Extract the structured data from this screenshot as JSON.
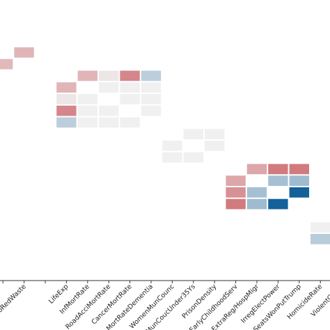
{
  "chart_data": {
    "type": "heatmap",
    "title": "",
    "xlabel": "",
    "ylabel": "",
    "color_scale": {
      "min": -1,
      "max": 1,
      "negative": "#0b5a96",
      "neutral": "#f0f0f0",
      "positive": "#c0393f"
    },
    "x_categories": [
      "",
      "gCoRedWaste",
      "",
      "LifeExp",
      "InfMortRate",
      "RoadAcciMortRate",
      "CancerMortRate",
      "MortRateDementia",
      "WomenMunCounc",
      "MunCoucUnder35Ys",
      "PrisonDensity",
      "EarlyChildhoodServ",
      "ExtraReg/HospMigr",
      "IrregElectPower",
      "SeatsWonPutTrump",
      "HomicideRate",
      "ViolentCrime",
      ""
    ],
    "cells": [
      {
        "x": 0,
        "y": 1,
        "value": 0.2
      },
      {
        "x": 1,
        "y": 0,
        "value": 0.22
      },
      {
        "x": 3,
        "y": 3,
        "value": 0.22
      },
      {
        "x": 3,
        "y": 4,
        "value": 0.02
      },
      {
        "x": 3,
        "y": 5,
        "value": 0.48
      },
      {
        "x": 3,
        "y": 6,
        "value": -0.14
      },
      {
        "x": 4,
        "y": 2,
        "value": 0.22
      },
      {
        "x": 4,
        "y": 4,
        "value": 0.0
      },
      {
        "x": 4,
        "y": 5,
        "value": 0.0
      },
      {
        "x": 4,
        "y": 6,
        "value": 0.0
      },
      {
        "x": 5,
        "y": 2,
        "value": 0.02
      },
      {
        "x": 5,
        "y": 3,
        "value": 0.0
      },
      {
        "x": 5,
        "y": 5,
        "value": 0.0
      },
      {
        "x": 5,
        "y": 6,
        "value": 0.0
      },
      {
        "x": 6,
        "y": 2,
        "value": 0.48
      },
      {
        "x": 6,
        "y": 3,
        "value": 0.0
      },
      {
        "x": 6,
        "y": 4,
        "value": 0.0
      },
      {
        "x": 6,
        "y": 6,
        "value": 0.0
      },
      {
        "x": 7,
        "y": 2,
        "value": -0.14
      },
      {
        "x": 7,
        "y": 3,
        "value": 0.0
      },
      {
        "x": 7,
        "y": 4,
        "value": 0.0
      },
      {
        "x": 7,
        "y": 5,
        "value": 0.0
      },
      {
        "x": 8,
        "y": 8,
        "value": 0.0
      },
      {
        "x": 8,
        "y": 9,
        "value": 0.0
      },
      {
        "x": 9,
        "y": 7,
        "value": 0.0
      },
      {
        "x": 9,
        "y": 9,
        "value": 0.0
      },
      {
        "x": 10,
        "y": 7,
        "value": 0.0
      },
      {
        "x": 10,
        "y": 8,
        "value": 0.0
      },
      {
        "x": 11,
        "y": 11,
        "value": 0.3
      },
      {
        "x": 11,
        "y": 12,
        "value": 0.42
      },
      {
        "x": 11,
        "y": 13,
        "value": 0.55
      },
      {
        "x": 12,
        "y": 10,
        "value": 0.3
      },
      {
        "x": 12,
        "y": 12,
        "value": -0.22
      },
      {
        "x": 12,
        "y": 13,
        "value": -0.25
      },
      {
        "x": 13,
        "y": 10,
        "value": 0.55
      },
      {
        "x": 13,
        "y": 11,
        "value": -0.22
      },
      {
        "x": 13,
        "y": 13,
        "value": -0.95
      },
      {
        "x": 14,
        "y": 10,
        "value": 0.55
      },
      {
        "x": 14,
        "y": 11,
        "value": -0.25
      },
      {
        "x": 14,
        "y": 12,
        "value": -0.95
      },
      {
        "x": 15,
        "y": 15,
        "value": 0.0
      },
      {
        "x": 15,
        "y": 16,
        "value": -0.15
      },
      {
        "x": 16,
        "y": 14,
        "value": 0.0
      },
      {
        "x": 16,
        "y": 16,
        "value": 0.0
      },
      {
        "x": 17,
        "y": 14,
        "value": 0.0
      },
      {
        "x": 17,
        "y": 15,
        "value": 0.0
      }
    ]
  }
}
